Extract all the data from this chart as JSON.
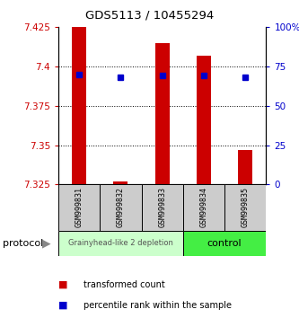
{
  "title": "GDS5113 / 10455294",
  "samples": [
    "GSM999831",
    "GSM999832",
    "GSM999833",
    "GSM999834",
    "GSM999835"
  ],
  "bar_bottom": [
    7.325,
    7.325,
    7.325,
    7.325,
    7.325
  ],
  "bar_top": [
    7.425,
    7.327,
    7.415,
    7.407,
    7.347
  ],
  "blue_dot_y": [
    7.395,
    7.393,
    7.394,
    7.394,
    7.393
  ],
  "ylim": [
    7.325,
    7.425
  ],
  "yticks_left": [
    7.325,
    7.35,
    7.375,
    7.4,
    7.425
  ],
  "yticks_right": [
    0,
    25,
    50,
    75,
    100
  ],
  "bar_color": "#cc0000",
  "dot_color": "#0000cc",
  "group1_label": "Grainyhead-like 2 depletion",
  "group2_label": "control",
  "group1_color": "#ccffcc",
  "group2_color": "#44ee44",
  "protocol_label": "protocol",
  "legend_red_label": "transformed count",
  "legend_blue_label": "percentile rank within the sample"
}
